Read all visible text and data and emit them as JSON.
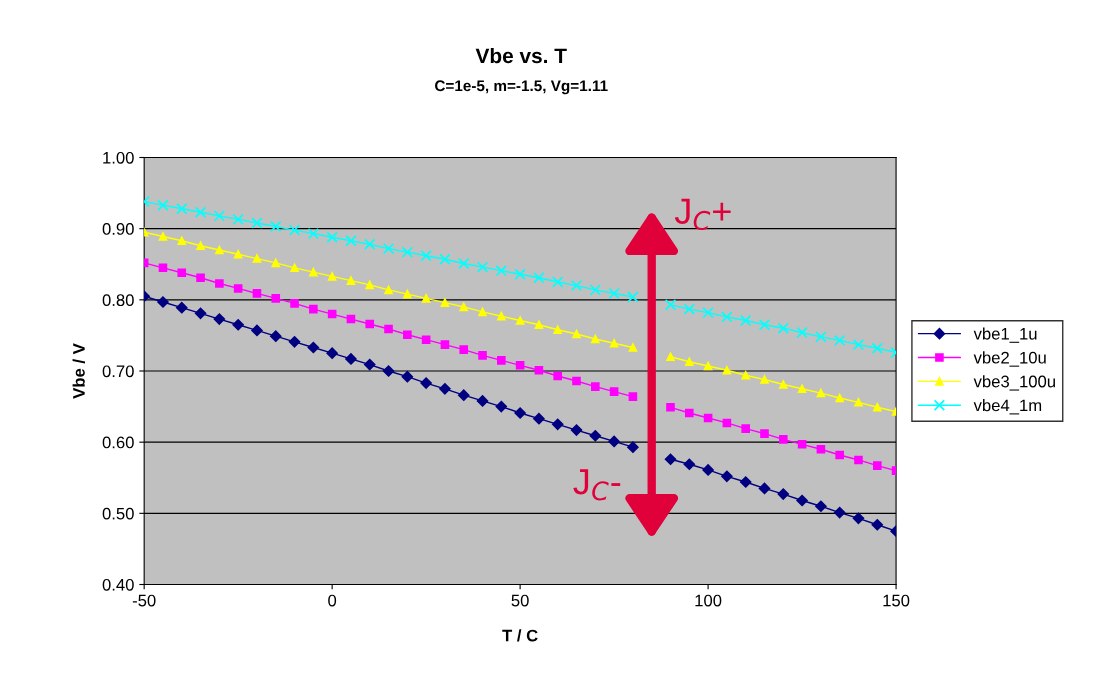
{
  "chart_data": {
    "type": "line",
    "title": "Vbe vs. T",
    "subtitle": "C=1e-5, m=-1.5, Vg=1.11",
    "xlabel": "T / C",
    "ylabel": "Vbe / V",
    "x": [
      -50,
      -45,
      -40,
      -35,
      -30,
      -25,
      -20,
      -15,
      -10,
      -5,
      0,
      5,
      10,
      15,
      20,
      25,
      30,
      35,
      40,
      45,
      50,
      55,
      60,
      65,
      70,
      75,
      80,
      85,
      90,
      95,
      100,
      105,
      110,
      115,
      120,
      125,
      130,
      135,
      140,
      145,
      150
    ],
    "series": [
      {
        "name": "vbe1_1u",
        "color": "#000080",
        "marker": "diamond",
        "values": [
          0.805,
          0.797,
          0.789,
          0.781,
          0.773,
          0.765,
          0.757,
          0.749,
          0.741,
          0.733,
          0.725,
          0.717,
          0.709,
          0.7,
          0.692,
          0.683,
          0.675,
          0.666,
          0.658,
          0.65,
          0.641,
          0.633,
          0.625,
          0.617,
          0.609,
          0.601,
          0.593,
          null,
          0.576,
          0.569,
          0.561,
          0.552,
          0.544,
          0.535,
          0.527,
          0.518,
          0.51,
          0.501,
          0.493,
          0.484,
          0.475
        ]
      },
      {
        "name": "vbe2_10u",
        "color": "#ff00ff",
        "marker": "square",
        "values": [
          0.852,
          0.845,
          0.838,
          0.831,
          0.823,
          0.816,
          0.809,
          0.802,
          0.795,
          0.787,
          0.78,
          0.773,
          0.766,
          0.759,
          0.751,
          0.744,
          0.737,
          0.73,
          0.722,
          0.715,
          0.708,
          0.701,
          0.693,
          0.686,
          0.678,
          0.671,
          0.664,
          null,
          0.649,
          0.641,
          0.634,
          0.627,
          0.619,
          0.612,
          0.604,
          0.597,
          0.59,
          0.582,
          0.575,
          0.567,
          0.56
        ]
      },
      {
        "name": "vbe3_100u",
        "color": "#ffff00",
        "marker": "triangle",
        "values": [
          0.895,
          0.889,
          0.883,
          0.876,
          0.87,
          0.864,
          0.858,
          0.852,
          0.845,
          0.839,
          0.833,
          0.827,
          0.821,
          0.814,
          0.808,
          0.802,
          0.796,
          0.79,
          0.783,
          0.777,
          0.771,
          0.765,
          0.758,
          0.752,
          0.745,
          0.739,
          0.733,
          null,
          0.72,
          0.713,
          0.707,
          0.701,
          0.694,
          0.688,
          0.681,
          0.675,
          0.669,
          0.662,
          0.656,
          0.649,
          0.643
        ]
      },
      {
        "name": "vbe4_1m",
        "color": "#00ffff",
        "marker": "cross",
        "values": [
          0.938,
          0.933,
          0.928,
          0.923,
          0.918,
          0.913,
          0.908,
          0.903,
          0.898,
          0.893,
          0.888,
          0.883,
          0.878,
          0.872,
          0.867,
          0.862,
          0.857,
          0.851,
          0.846,
          0.841,
          0.836,
          0.831,
          0.825,
          0.82,
          0.814,
          0.809,
          0.804,
          null,
          0.793,
          0.787,
          0.782,
          0.776,
          0.771,
          0.765,
          0.76,
          0.754,
          0.748,
          0.743,
          0.737,
          0.732,
          0.726
        ]
      }
    ],
    "xlim": [
      -50,
      150
    ],
    "xticks": [
      -50,
      0,
      50,
      100,
      150
    ],
    "ylim": [
      0.4,
      1.0
    ],
    "yticks": [
      {
        "value": 0.4,
        "label": "0.40"
      },
      {
        "value": 0.5,
        "label": "0.50"
      },
      {
        "value": 0.6,
        "label": "0.60"
      },
      {
        "value": 0.7,
        "label": "0.70"
      },
      {
        "value": 0.8,
        "label": "0.80"
      },
      {
        "value": 0.9,
        "label": "0.90"
      },
      {
        "value": 1.0,
        "label": "1.00"
      }
    ],
    "grid": "y",
    "legend": "right",
    "line_style": "solid",
    "annotations": [
      "J$_{C}$+",
      "J$_{C}$-"
    ]
  }
}
